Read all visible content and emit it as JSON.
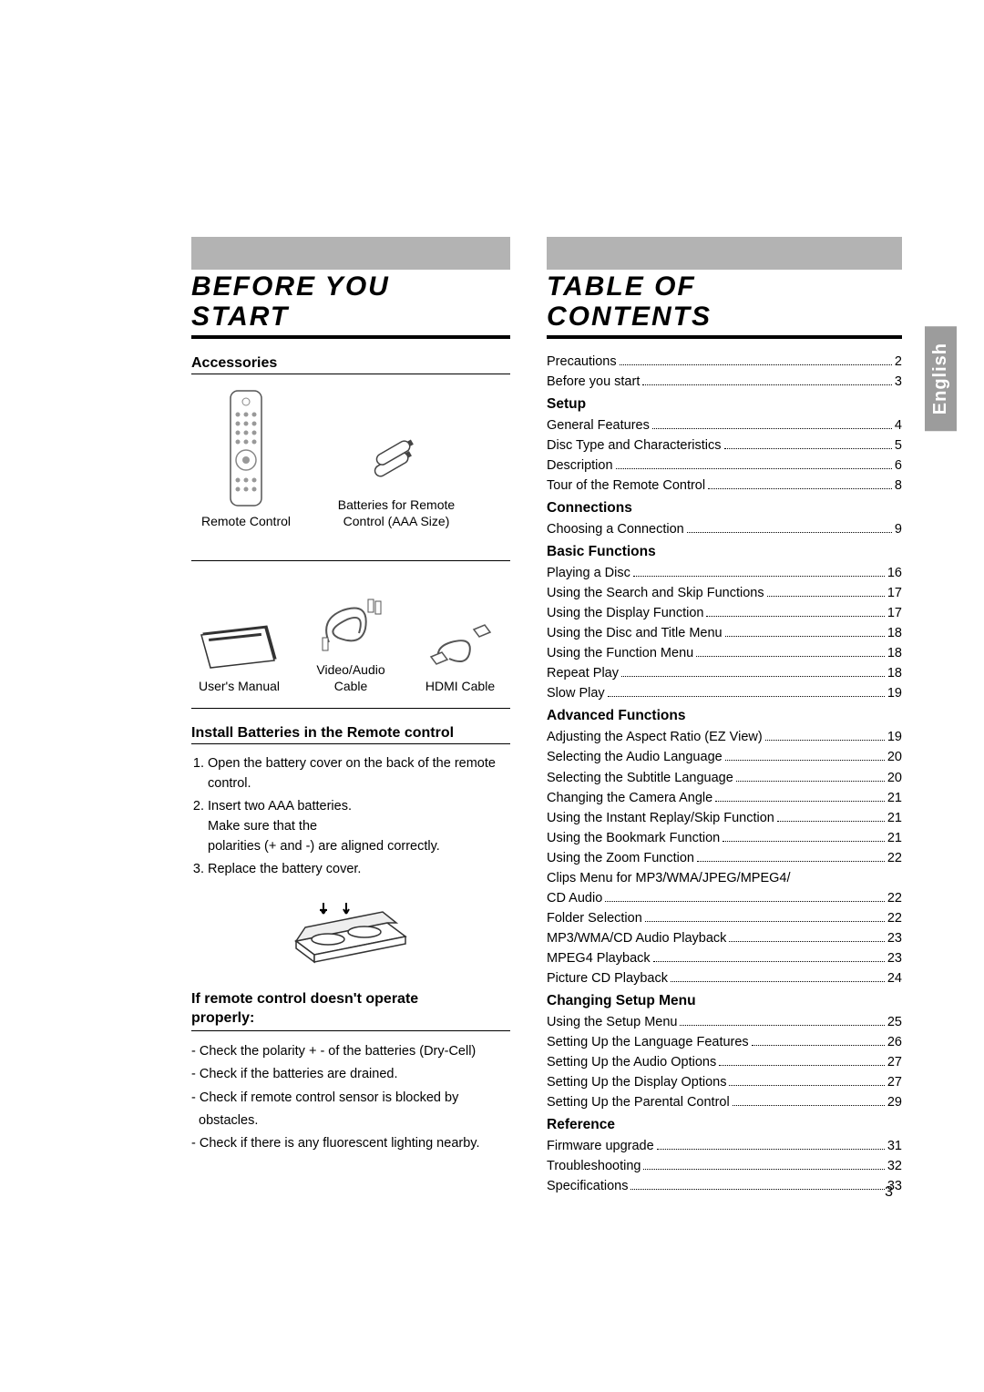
{
  "page_number": "3",
  "side_tab": "English",
  "left": {
    "title_line1": "BEFORE YOU",
    "title_line2": "START",
    "accessories_heading": "Accessories",
    "accessories": {
      "remote": "Remote Control",
      "batteries_l1": "Batteries for Remote",
      "batteries_l2": "Control (AAA Size)",
      "manual": "User's Manual",
      "av_l1": "Video/Audio",
      "av_l2": "Cable",
      "hdmi": "HDMI Cable"
    },
    "install_heading": "Install Batteries in the Remote control",
    "install_steps": {
      "s1": "Open the battery cover on the back of the remote control.",
      "s2a": "Insert two AAA batteries.",
      "s2b": "Make sure that the",
      "s2c": "polarities (+ and -) are aligned correctly.",
      "s3": "Replace the battery cover."
    },
    "troubleshoot_heading_l1": "If remote control doesn't operate",
    "troubleshoot_heading_l2": "properly:",
    "troubleshoot": {
      "t1": "- Check the polarity + - of the batteries (Dry-Cell)",
      "t2": "- Check if the batteries are drained.",
      "t3": "- Check if remote control sensor is blocked by",
      "t3b": "  obstacles.",
      "t4": "- Check if there is any fluorescent lighting nearby."
    }
  },
  "right": {
    "title_line1": "TABLE OF",
    "title_line2": "CONTENTS",
    "toc": [
      {
        "type": "item",
        "label": "Precautions",
        "page": "2"
      },
      {
        "type": "item",
        "label": "Before you start",
        "page": "3"
      },
      {
        "type": "section",
        "label": "Setup"
      },
      {
        "type": "item",
        "label": "General Features",
        "page": "4"
      },
      {
        "type": "item",
        "label": "Disc Type and Characteristics",
        "page": "5"
      },
      {
        "type": "item",
        "label": "Description",
        "page": "6"
      },
      {
        "type": "item",
        "label": "Tour of the Remote Control",
        "page": "8"
      },
      {
        "type": "section",
        "label": "Connections"
      },
      {
        "type": "item",
        "label": "Choosing a Connection",
        "page": "9"
      },
      {
        "type": "section",
        "label": "Basic Functions"
      },
      {
        "type": "item",
        "label": "Playing a Disc",
        "page": "16"
      },
      {
        "type": "item",
        "label": "Using the Search and Skip Functions",
        "page": "17"
      },
      {
        "type": "item",
        "label": "Using the Display Function",
        "page": "17"
      },
      {
        "type": "item",
        "label": "Using the Disc and Title Menu",
        "page": "18"
      },
      {
        "type": "item",
        "label": "Using the Function Menu",
        "page": "18"
      },
      {
        "type": "item",
        "label": "Repeat Play",
        "page": "18"
      },
      {
        "type": "item",
        "label": "Slow Play",
        "page": "19"
      },
      {
        "type": "section",
        "label": "Advanced Functions"
      },
      {
        "type": "item",
        "label": "Adjusting the Aspect Ratio (EZ View)",
        "page": "19"
      },
      {
        "type": "item",
        "label": "Selecting the Audio Language",
        "page": "20"
      },
      {
        "type": "item",
        "label": "Selecting the Subtitle Language",
        "page": "20"
      },
      {
        "type": "item",
        "label": "Changing the Camera Angle",
        "page": "21"
      },
      {
        "type": "item",
        "label": "Using the Instant Replay/Skip Function",
        "page": "21"
      },
      {
        "type": "item",
        "label": "Using the Bookmark Function",
        "page": "21"
      },
      {
        "type": "item",
        "label": "Using the Zoom Function",
        "page": "22"
      },
      {
        "type": "plain",
        "label": "Clips Menu for MP3/WMA/JPEG/MPEG4/"
      },
      {
        "type": "item",
        "label": "CD Audio",
        "page": "22"
      },
      {
        "type": "item",
        "label": "Folder Selection",
        "page": "22"
      },
      {
        "type": "item",
        "label": "MP3/WMA/CD Audio Playback",
        "page": "23"
      },
      {
        "type": "item",
        "label": "MPEG4 Playback",
        "page": "23"
      },
      {
        "type": "item",
        "label": "Picture CD Playback",
        "page": "24"
      },
      {
        "type": "section",
        "label": "Changing Setup Menu"
      },
      {
        "type": "item",
        "label": "Using the Setup Menu",
        "page": "25"
      },
      {
        "type": "item",
        "label": "Setting Up the Language Features",
        "page": "26"
      },
      {
        "type": "item",
        "label": "Setting Up the Audio Options",
        "page": "27"
      },
      {
        "type": "item",
        "label": "Setting Up the Display Options",
        "page": "27"
      },
      {
        "type": "item",
        "label": "Setting Up the Parental Control",
        "page": "29"
      },
      {
        "type": "section",
        "label": "Reference"
      },
      {
        "type": "item",
        "label": "Firmware upgrade",
        "page": "31"
      },
      {
        "type": "item",
        "label": "Troubleshooting",
        "page": "32"
      },
      {
        "type": "item",
        "label": "Specifications",
        "page": "33"
      }
    ]
  },
  "colors": {
    "grey_bar": "#b3b3b3",
    "side_tab": "#9c9c9c",
    "text": "#000000",
    "bg": "#ffffff"
  }
}
